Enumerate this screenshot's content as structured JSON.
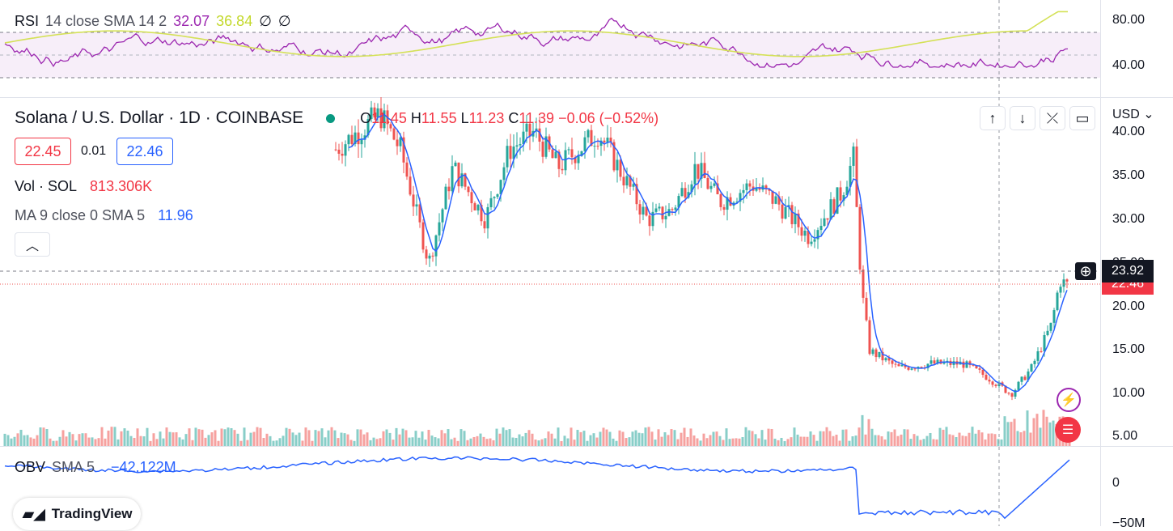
{
  "rsi": {
    "label": "RSI",
    "params": "14 close SMA 14 2",
    "value": "32.07",
    "sma_value": "36.84",
    "icon1": "eye-off-icon",
    "icon2": "eye-off-icon",
    "axis_ticks": [
      "80.00",
      "40.00"
    ]
  },
  "header": {
    "title": "Solana / U.S. Dollar · 1D · COINBASE",
    "o_label": "O",
    "o_value": "11.45",
    "h_label": "H",
    "h_value": "11.55",
    "l_label": "L",
    "l_value": "11.23",
    "c_label": "C",
    "c_value": "11.39",
    "change": "−0.06 (−0.52%)"
  },
  "bid": "22.45",
  "spread": "0.01",
  "ask": "22.46",
  "volume": {
    "label": "Vol · SOL",
    "value": "813.306K"
  },
  "ma": {
    "label": "MA 9 close 0 SMA 5",
    "value": "11.96"
  },
  "currency": "USD",
  "price_axis": [
    "40.00",
    "35.00",
    "30.00",
    "25.00",
    "20.00",
    "15.00",
    "10.00",
    "5.00"
  ],
  "crosshair_price": "23.92",
  "last_price": "22.46",
  "obv": {
    "label": "OBV",
    "params": "SMA 5",
    "value": "−42.122M",
    "axis_ticks": [
      "0",
      "−50M"
    ]
  },
  "brand": "TradingView",
  "colors": {
    "up": "#26a69a",
    "down": "#ef5350",
    "ma": "#2962ff",
    "rsi": "#9c27b0",
    "rsi_sma": "#d4e157"
  }
}
